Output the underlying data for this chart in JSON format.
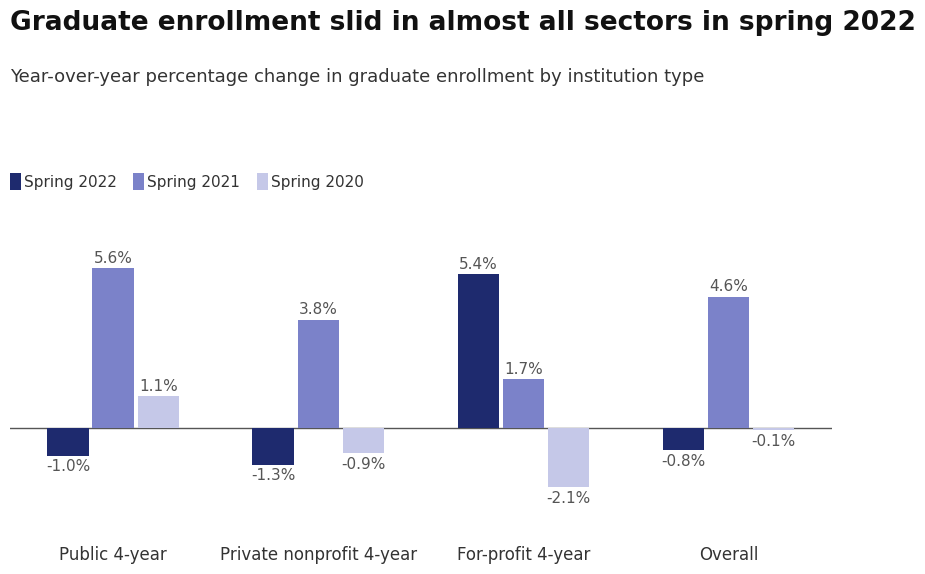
{
  "title": "Graduate enrollment slid in almost all sectors in spring 2022",
  "subtitle": "Year-over-year percentage change in graduate enrollment by institution type",
  "categories": [
    "Public 4-year",
    "Private nonprofit 4-year",
    "For-profit 4-year",
    "Overall"
  ],
  "series": {
    "Spring 2022": [
      -1.0,
      -1.3,
      5.4,
      -0.8
    ],
    "Spring 2021": [
      5.6,
      3.8,
      1.7,
      4.6
    ],
    "Spring 2020": [
      1.1,
      -0.9,
      -2.1,
      -0.1
    ]
  },
  "colors": {
    "Spring 2022": "#1e2a6e",
    "Spring 2021": "#7b82c9",
    "Spring 2020": "#c5c8e8"
  },
  "legend_order": [
    "Spring 2022",
    "Spring 2021",
    "Spring 2020"
  ],
  "ylim": [
    -3.5,
    7.2
  ],
  "bar_width": 0.22,
  "background_color": "#ffffff",
  "title_fontsize": 19,
  "subtitle_fontsize": 13,
  "label_fontsize": 11,
  "tick_fontsize": 12,
  "legend_fontsize": 11
}
